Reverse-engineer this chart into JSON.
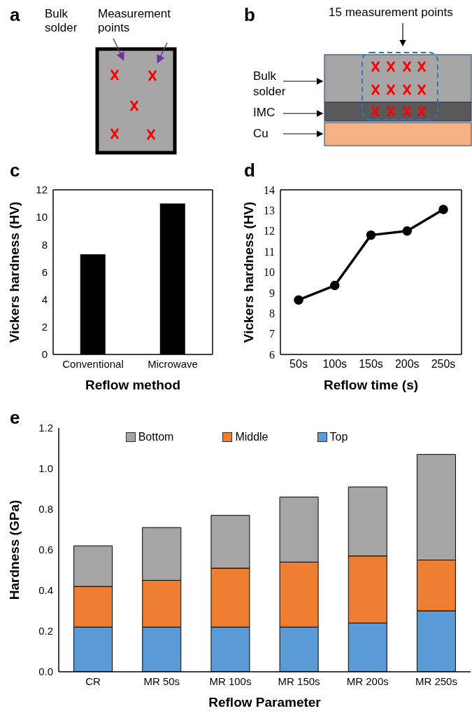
{
  "chart_data": [
    {
      "type": "other",
      "title": "a",
      "annotations": [
        "Bulk solder",
        "Measurement points"
      ]
    },
    {
      "type": "other",
      "title": "b",
      "annotations": [
        "15 measurement points",
        "Bulk solder",
        "IMC",
        "Cu"
      ]
    },
    {
      "type": "bar",
      "title": "c",
      "categories": [
        "Conventional",
        "Microwave"
      ],
      "values": [
        7.3,
        11.0
      ],
      "color": "#000000",
      "xlabel": "Reflow method",
      "ylabel": "Vickers hardness (HV)",
      "ylim": [
        0,
        12
      ],
      "yticks": [
        0,
        2,
        4,
        6,
        8,
        10,
        12
      ]
    },
    {
      "type": "line",
      "title": "d",
      "categories": [
        "50s",
        "100s",
        "150s",
        "200s",
        "250s"
      ],
      "values": [
        8.65,
        9.35,
        11.8,
        12.0,
        13.05
      ],
      "color": "#000000",
      "marker": "circle",
      "line_style": "solid",
      "xlabel": "Reflow time (s)",
      "ylabel": "Vickers hardness (HV)",
      "ylim": [
        6,
        14
      ],
      "yticks": [
        6,
        7,
        8,
        9,
        10,
        11,
        12,
        13,
        14
      ]
    },
    {
      "type": "bar",
      "title": "e",
      "stacked": true,
      "legend": "top",
      "categories": [
        "CR",
        "MR 50s",
        "MR 100s",
        "MR 150s",
        "MR 200s",
        "MR 250s"
      ],
      "xlabel": "Reflow Parameter",
      "ylabel": "Hardness (GPa)",
      "ylim": [
        0,
        1.2
      ],
      "yticks": [
        {
          "value": 0,
          "label": "0.0"
        },
        {
          "value": 0.2,
          "label": "0.2"
        },
        {
          "value": 0.4,
          "label": "0.4"
        },
        {
          "value": 0.6,
          "label": "0.6"
        },
        {
          "value": 0.8,
          "label": "0.8"
        },
        {
          "value": 1.0,
          "label": "1.0"
        },
        {
          "value": 1.2,
          "label": "1.2"
        }
      ],
      "series": [
        {
          "name": "Top",
          "color": "#5b9bd5",
          "values": [
            0.22,
            0.22,
            0.22,
            0.22,
            0.24,
            0.3
          ]
        },
        {
          "name": "Middle",
          "color": "#ed7d31",
          "values": [
            0.2,
            0.23,
            0.29,
            0.32,
            0.33,
            0.25
          ]
        },
        {
          "name": "Bottom",
          "color": "#a5a5a5",
          "values": [
            0.2,
            0.26,
            0.26,
            0.32,
            0.34,
            0.52
          ]
        }
      ]
    }
  ]
}
